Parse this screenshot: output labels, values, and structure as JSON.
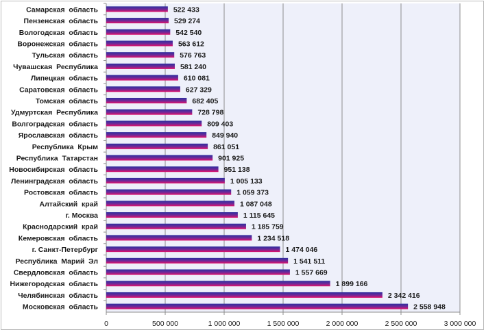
{
  "chart_data": {
    "type": "bar",
    "orientation": "horizontal",
    "title": "",
    "xlabel": "",
    "ylabel": "",
    "xlim": [
      0,
      3000000
    ],
    "x_ticks": [
      0,
      500000,
      1000000,
      1500000,
      2000000,
      2500000,
      3000000
    ],
    "x_tick_labels": [
      "0",
      "500 000",
      "1 000 000",
      "1 500 000",
      "2 000 000",
      "2 500 000",
      "3 000 000"
    ],
    "grid": true,
    "legend": "none",
    "colors": {
      "bar_top": "#2e2e9e",
      "bar_bottom": "#e0106a",
      "plot_bg": "#eef0fa",
      "grid": "#8c8c8c"
    },
    "categories": [
      "Самарская  область",
      "Пензенская  область",
      "Вологодская  область",
      "Воронежская  область",
      "Тульская  область",
      "Чувашская  Республика",
      "Липецкая  область",
      "Саратовская  область",
      "Томская  область",
      "Удмуртская  Республика",
      "Волгоградская  область",
      "Ярославская  область",
      "Республика  Крым",
      "Республика  Татарстан",
      "Новосибирская  область",
      "Ленинградская  область",
      "Ростовская  область",
      "Алтайский  край",
      "г. Москва",
      "Краснодарский  край",
      "Кемеровская  область",
      "г. Санкт-Петербург",
      "Республика  Марий  Эл",
      "Свердловская  область",
      "Нижегородская  область",
      "Челябинская  область",
      "Московская  область"
    ],
    "values": [
      522433,
      529274,
      542540,
      563612,
      576763,
      581240,
      610081,
      627329,
      682405,
      728798,
      809403,
      849940,
      861051,
      901925,
      951138,
      1005133,
      1059373,
      1087048,
      1115645,
      1185759,
      1234518,
      1474046,
      1541511,
      1557669,
      1899166,
      2342416,
      2558948
    ],
    "value_labels": [
      "522 433",
      "529 274",
      "542 540",
      "563 612",
      "576 763",
      "581 240",
      "610 081",
      "627 329",
      "682 405",
      "728 798",
      "809 403",
      "849 940",
      "861 051",
      "901 925",
      "951 138",
      "1 005 133",
      "1 059 373",
      "1 087 048",
      "1 115 645",
      "1 185 759",
      "1 234 518",
      "1 474 046",
      "1 541 511",
      "1 557 669",
      "1 899 166",
      "2 342 416",
      "2 558 948"
    ]
  }
}
